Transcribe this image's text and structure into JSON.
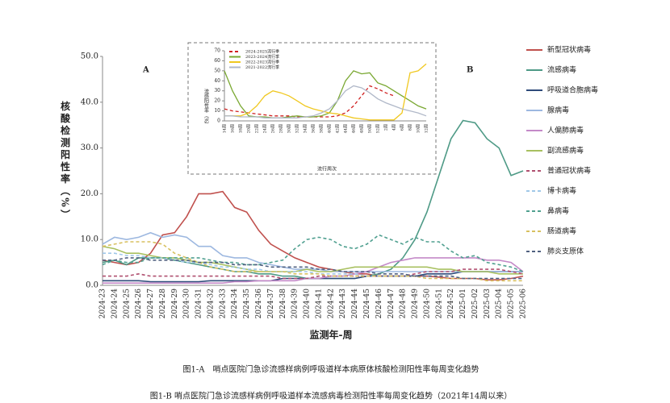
{
  "chart_data": [
    {
      "type": "line",
      "y_label": "核酸检测阳性率（%）",
      "x_label": "监测年-周",
      "panel_labels": [
        "A",
        "B"
      ],
      "caption": "图1-A　哨点医院门急诊流感样病例呼吸道样本病原体核酸检测阳性率每周变化趋势",
      "categories": [
        "2024-23",
        "2024-24",
        "2024-25",
        "2024-26",
        "2024-27",
        "2024-28",
        "2024-29",
        "2024-30",
        "2024-31",
        "2024-32",
        "2024-33",
        "2024-34",
        "2024-35",
        "2024-36",
        "2024-37",
        "2024-38",
        "2024-39",
        "2024-40",
        "2024-41",
        "2024-42",
        "2024-43",
        "2024-44",
        "2024-45",
        "2024-46",
        "2024-47",
        "2024-48",
        "2024-49",
        "2024-50",
        "2024-51",
        "2024-52",
        "2025-01",
        "2025-02",
        "2025-03",
        "2025-04",
        "2025-05",
        "2025-06"
      ],
      "ylim": [
        0,
        50
      ],
      "yticks": [
        {
          "value": 0,
          "label": "0.0"
        },
        {
          "value": 10,
          "label": "10.0"
        },
        {
          "value": 20,
          "label": "20.0"
        },
        {
          "value": 30,
          "label": "30.0"
        },
        {
          "value": 40,
          "label": "40.0"
        },
        {
          "value": 50,
          "label": "50.0"
        }
      ],
      "series": [
        {
          "name": "新型冠状病毒",
          "color": "#c0504d",
          "dashed": false,
          "values": [
            5.5,
            5,
            4.5,
            5,
            7,
            11,
            11.5,
            15,
            20,
            20,
            20.5,
            17,
            16,
            12,
            9,
            7.5,
            6,
            5,
            4,
            3.5,
            3,
            2.5,
            2.5,
            2,
            2,
            2,
            2,
            2,
            1.8,
            1.5,
            1.5,
            1.5,
            1.2,
            1.2,
            1.5,
            2
          ]
        },
        {
          "name": "流感病毒",
          "color": "#4e9a86",
          "dashed": false,
          "values": [
            5,
            5.5,
            4.5,
            6,
            6,
            6,
            5.5,
            5,
            4.5,
            4,
            3.5,
            3,
            3,
            2.5,
            2.5,
            2,
            2,
            1.5,
            1.5,
            1.5,
            1.5,
            1.5,
            2,
            2.5,
            3.5,
            6,
            10,
            16,
            24,
            32,
            36,
            35.5,
            32,
            30,
            24,
            25
          ]
        },
        {
          "name": "呼吸道合胞病毒",
          "color": "#2e4a7a",
          "dashed": false,
          "values": [
            1,
            1,
            1,
            1,
            0.8,
            0.8,
            0.8,
            0.8,
            0.8,
            1,
            1,
            1,
            1,
            1,
            1,
            1.5,
            1.5,
            1.5,
            1.5,
            1.5,
            1.5,
            1.5,
            2,
            2,
            2,
            2,
            2,
            2.5,
            2.5,
            2.5,
            3,
            3,
            3,
            3,
            3,
            3
          ]
        },
        {
          "name": "腺病毒",
          "color": "#9db8e0",
          "dashed": false,
          "values": [
            9,
            10.5,
            10,
            10.5,
            11.5,
            10.5,
            11,
            10.5,
            8.5,
            8.5,
            6.5,
            6,
            6,
            5,
            4.5,
            4,
            3.5,
            3.5,
            3.5,
            3,
            3,
            3,
            3,
            3,
            3,
            3,
            3,
            3,
            3,
            3,
            3,
            3,
            3,
            3,
            3,
            3
          ]
        },
        {
          "name": "人偏肺病毒",
          "color": "#c48ac8",
          "dashed": false,
          "values": [
            0.5,
            0.5,
            0.5,
            0.5,
            0.5,
            0.5,
            0.5,
            0.5,
            0.5,
            0.5,
            0.5,
            0.8,
            0.8,
            1,
            1,
            1,
            1,
            1.5,
            1.5,
            2,
            2,
            2.5,
            3,
            4,
            5,
            5.5,
            6,
            6,
            6,
            6,
            6,
            6,
            5.5,
            5.5,
            5,
            3
          ]
        },
        {
          "name": "副流感病毒",
          "color": "#a8c060",
          "dashed": false,
          "values": [
            8.5,
            8,
            7,
            7,
            6.5,
            6,
            6,
            5.5,
            5,
            5,
            4.5,
            4,
            3.5,
            3,
            3,
            3,
            3,
            3.5,
            3,
            3,
            3.5,
            4,
            4,
            4,
            4,
            4,
            4,
            4,
            3.5,
            3.5,
            3,
            3,
            3,
            2.5,
            2.5,
            2.5
          ]
        },
        {
          "name": "普通冠状病毒",
          "color": "#b05070",
          "dashed": true,
          "values": [
            2,
            2,
            2,
            2.5,
            2,
            2,
            2,
            2,
            2,
            2,
            2,
            2,
            2,
            2,
            2,
            1.5,
            1.5,
            1.5,
            2,
            2,
            2,
            2,
            2,
            2,
            2,
            2,
            2.5,
            3,
            3,
            3,
            3.5,
            3.5,
            3.5,
            3.5,
            3,
            2.5
          ]
        },
        {
          "name": "博卡病毒",
          "color": "#a0c8e8",
          "dashed": true,
          "values": [
            7,
            7,
            6.5,
            6.5,
            6,
            6,
            5.5,
            5,
            5,
            4.5,
            4,
            4,
            3.5,
            3.5,
            3,
            3,
            3,
            3,
            2.5,
            2.5,
            2.5,
            2.5,
            2,
            2,
            2,
            2,
            2,
            2,
            2,
            2,
            1.5,
            1.5,
            1.5,
            1.5,
            1.5,
            1.5
          ]
        },
        {
          "name": "鼻病毒",
          "color": "#50a090",
          "dashed": true,
          "values": [
            4.5,
            5.5,
            5,
            5,
            6,
            6,
            6,
            6,
            6,
            5.5,
            5,
            5,
            4.5,
            4.5,
            5,
            5.5,
            8,
            10,
            10.5,
            10,
            8.5,
            8,
            9,
            11,
            10,
            9,
            10.5,
            9.5,
            9.5,
            7.5,
            6,
            6.5,
            5,
            4.5,
            4,
            3
          ]
        },
        {
          "name": "肠道病毒",
          "color": "#d8c060",
          "dashed": true,
          "values": [
            8.5,
            9,
            9.5,
            9.5,
            9.5,
            9,
            7,
            6,
            5,
            4,
            3.5,
            3,
            3,
            3,
            3,
            3,
            2.5,
            2.5,
            2.5,
            2,
            2,
            2,
            2,
            2,
            2,
            2,
            2,
            1.5,
            1.5,
            1.5,
            1.5,
            1.5,
            1,
            1,
            1,
            1
          ]
        },
        {
          "name": "肺炎支原体",
          "color": "#506080",
          "dashed": true,
          "values": [
            5.5,
            5.5,
            6,
            6,
            5.5,
            5.5,
            5.5,
            5.5,
            5,
            5,
            5,
            4.5,
            4.5,
            4.5,
            4,
            4,
            4,
            4,
            3.5,
            3.5,
            3,
            3,
            3,
            2.5,
            2.5,
            2.5,
            2,
            2,
            2,
            2,
            1.5,
            1.5,
            1.5,
            1.5,
            1.5,
            1.5
          ]
        }
      ]
    },
    {
      "type": "line",
      "y_label": "流感阳性率（%）",
      "x_label": "流行周次",
      "caption": "图1-B 哨点医院门急诊流感样病例呼吸道样本流感病毒检测阳性率每周变化趋势（2021年14周以来）",
      "categories": [
        "14周",
        "16周",
        "18周",
        "20周",
        "22周",
        "24周",
        "26周",
        "28周",
        "30周",
        "32周",
        "34周",
        "36周",
        "38周",
        "40周",
        "42周",
        "44周",
        "46周",
        "48周",
        "50周",
        "52周",
        "2周",
        "4周",
        "6周",
        "8周",
        "10周",
        "12周"
      ],
      "ylim": [
        0,
        70
      ],
      "yticks": [
        0,
        10,
        20,
        30,
        40,
        50,
        60,
        70
      ],
      "series": [
        {
          "name": "2024-2025流行季",
          "color": "#d02020",
          "dashed": true,
          "values": [
            12,
            10,
            9,
            8,
            7,
            6,
            5,
            5,
            5,
            4,
            4,
            4,
            4,
            4,
            5,
            8,
            15,
            25,
            35,
            32,
            28,
            25,
            null,
            null,
            null,
            null
          ]
        },
        {
          "name": "2023-2024流行季",
          "color": "#7aa832",
          "dashed": false,
          "values": [
            50,
            30,
            15,
            5,
            4,
            4,
            3,
            3,
            4,
            5,
            4,
            4,
            5,
            8,
            20,
            40,
            50,
            47,
            48,
            38,
            35,
            30,
            25,
            20,
            15,
            12
          ]
        },
        {
          "name": "2022-2023流行季",
          "color": "#f0c820",
          "dashed": false,
          "values": [
            5,
            5,
            5,
            8,
            15,
            25,
            30,
            28,
            25,
            20,
            15,
            12,
            10,
            8,
            7,
            5,
            3,
            2,
            1,
            1,
            1,
            1,
            8,
            48,
            50,
            57
          ]
        },
        {
          "name": "2021-2022流行季",
          "color": "#b0b8c8",
          "dashed": false,
          "values": [
            5,
            5,
            4,
            4,
            4,
            3,
            3,
            3,
            3,
            3,
            4,
            5,
            8,
            12,
            20,
            30,
            35,
            33,
            28,
            22,
            18,
            15,
            12,
            10,
            8,
            5
          ]
        }
      ]
    }
  ]
}
